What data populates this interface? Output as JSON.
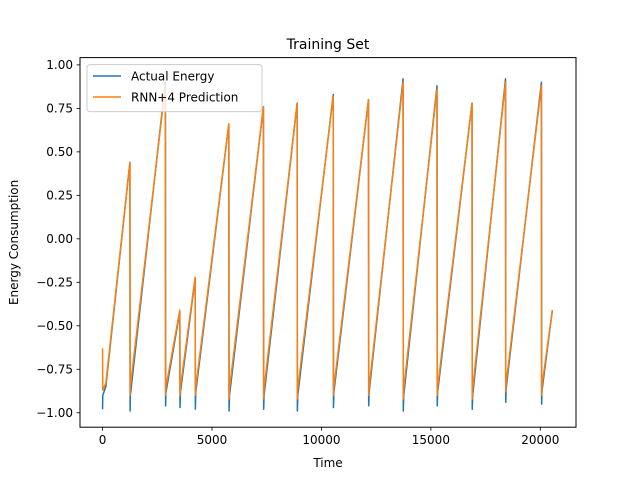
{
  "chart_data": {
    "type": "line",
    "title": "Training Set",
    "xlabel": "Time",
    "ylabel": "Energy Consumption",
    "xlim": [
      -1030,
      21630
    ],
    "ylim": [
      -1.083,
      1.042
    ],
    "xticks": [
      0,
      5000,
      10000,
      15000,
      20000
    ],
    "xtick_labels": [
      "0",
      "5000",
      "10000",
      "15000",
      "20000"
    ],
    "yticks": [
      -1.0,
      -0.75,
      -0.5,
      -0.25,
      0.0,
      0.25,
      0.5,
      0.75,
      1.0
    ],
    "ytick_labels": [
      "−1.00",
      "−0.75",
      "−0.50",
      "−0.25",
      "0.00",
      "0.25",
      "0.50",
      "0.75",
      "1.00"
    ],
    "grid": false,
    "legend_position": "top-left",
    "series": [
      {
        "name": "Actual Energy",
        "color": "#1f77b4",
        "x": [
          0,
          10,
          150,
          1250,
          1260,
          1270,
          2870,
          2880,
          2900,
          3530,
          3540,
          3560,
          4230,
          4240,
          4260,
          5770,
          5780,
          5800,
          7350,
          7360,
          7380,
          8890,
          8900,
          8920,
          10540,
          10550,
          10570,
          12150,
          12160,
          12180,
          13730,
          13740,
          13760,
          15280,
          15290,
          15310,
          16880,
          16890,
          16910,
          18410,
          18420,
          18440,
          20050,
          20060,
          20080,
          20550
        ],
        "y": [
          -0.98,
          -0.9,
          -0.85,
          0.44,
          -0.99,
          -0.9,
          0.9,
          -0.96,
          -0.88,
          -0.42,
          -0.97,
          -0.88,
          -0.23,
          -0.98,
          -0.88,
          0.66,
          -0.99,
          -0.9,
          0.76,
          -0.98,
          -0.9,
          0.78,
          -0.99,
          -0.9,
          0.83,
          -0.97,
          -0.88,
          0.8,
          -0.96,
          -0.88,
          0.92,
          -0.99,
          -0.9,
          0.88,
          -0.96,
          -0.88,
          0.78,
          -0.98,
          -0.9,
          0.92,
          -0.94,
          -0.86,
          0.9,
          -0.95,
          -0.87,
          -0.41
        ]
      },
      {
        "name": "RNN+4 Prediction",
        "color": "#ff7f0e",
        "x": [
          0,
          10,
          150,
          1250,
          1260,
          1270,
          2870,
          2880,
          2900,
          3530,
          3540,
          3560,
          4230,
          4240,
          4260,
          5770,
          5780,
          5800,
          7350,
          7360,
          7380,
          8890,
          8900,
          8920,
          10540,
          10550,
          10570,
          12150,
          12160,
          12180,
          13730,
          13740,
          13760,
          15280,
          15290,
          15310,
          16880,
          16890,
          16910,
          18410,
          18420,
          18440,
          20050,
          20060,
          20080,
          20550
        ],
        "y": [
          -0.63,
          -0.87,
          -0.83,
          0.44,
          -0.9,
          -0.85,
          0.88,
          -0.9,
          -0.85,
          -0.41,
          -0.9,
          -0.85,
          -0.22,
          -0.9,
          -0.85,
          0.66,
          -0.92,
          -0.86,
          0.76,
          -0.92,
          -0.86,
          0.78,
          -0.92,
          -0.86,
          0.82,
          -0.9,
          -0.85,
          0.8,
          -0.9,
          -0.85,
          0.9,
          -0.92,
          -0.86,
          0.86,
          -0.9,
          -0.85,
          0.78,
          -0.92,
          -0.86,
          0.9,
          -0.88,
          -0.83,
          0.88,
          -0.9,
          -0.84,
          -0.41
        ]
      }
    ]
  }
}
